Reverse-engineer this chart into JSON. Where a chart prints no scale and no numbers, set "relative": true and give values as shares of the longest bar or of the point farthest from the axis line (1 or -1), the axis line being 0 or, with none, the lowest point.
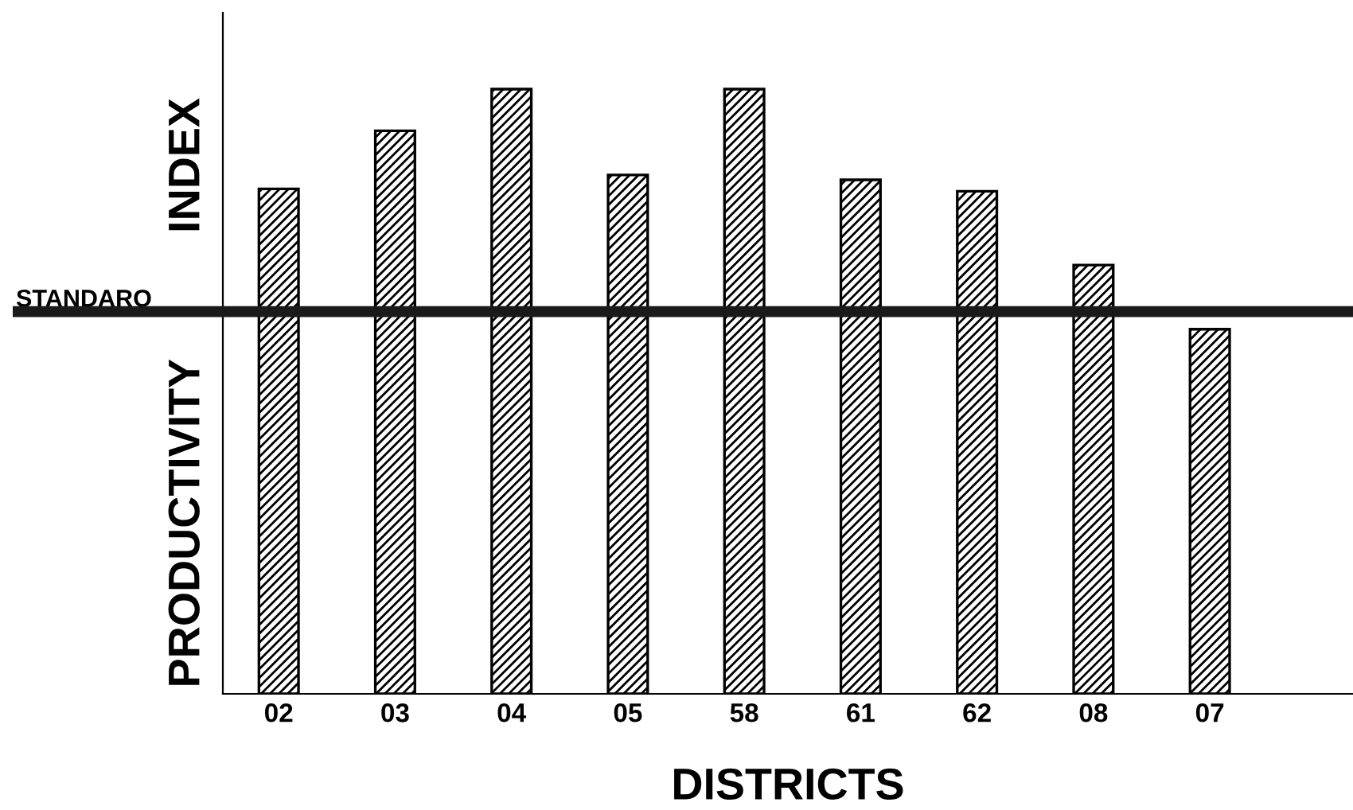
{
  "chart_data": {
    "type": "bar",
    "relative": true,
    "xlabel": "DISTRICTS",
    "ylabel": "PRODUCTIVITY INDEX",
    "categories": [
      "02",
      "03",
      "04",
      "05",
      "58",
      "61",
      "62",
      "08",
      "07"
    ],
    "values": [
      0.835,
      0.931,
      1,
      0.858,
      1,
      0.85,
      0.831,
      0.709,
      0.603
    ],
    "color": "#000000",
    "tick_labels": "x",
    "ref_lines": [
      {
        "axis": "y",
        "value": 0.632,
        "label": "STANDARO",
        "color": "#1a1a1a"
      }
    ]
  }
}
